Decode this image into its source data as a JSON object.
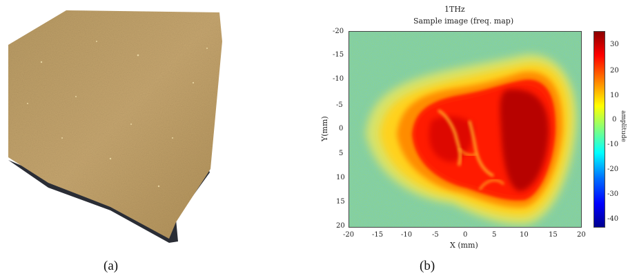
{
  "captions": {
    "a": "(a)",
    "b": "(b)"
  },
  "heatmap_panel": {
    "title_line1": "1THz",
    "title_line2": "Sample image (freq. map)",
    "xlabel": "X (mm)",
    "ylabel": "Y(mm)",
    "x_ticks": [
      "-20",
      "-15",
      "-10",
      "-5",
      "0",
      "5",
      "10",
      "15",
      "20"
    ],
    "y_ticks": [
      "-20",
      "-15",
      "-10",
      "-5",
      "0",
      "5",
      "10",
      "15",
      "20"
    ],
    "colorbar_ticks": [
      "30",
      "20",
      "10",
      "0",
      "-10",
      "-20",
      "-30",
      "-40"
    ],
    "colorbar_label": "amplitude",
    "colorbar_range": [
      -44,
      38
    ],
    "colormap": "jet",
    "colors": {
      "high": "#8b0000",
      "mid_high": "#ff2200",
      "mid": "#ffcc00",
      "low": "#7fd27f",
      "lowest": "#00008b"
    }
  },
  "sample_photo": {
    "subject": "beige sandstone-like sample fragment on white background",
    "colors": {
      "surface": "#c3a36b",
      "edge": "#2a2d35"
    }
  }
}
